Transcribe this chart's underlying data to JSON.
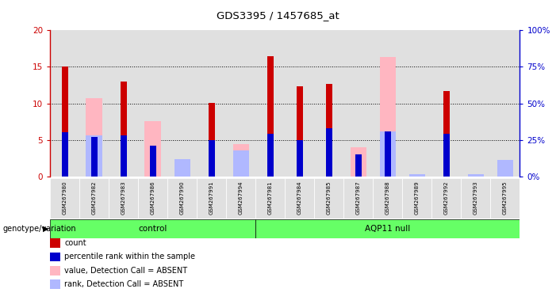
{
  "title": "GDS3395 / 1457685_at",
  "samples": [
    "GSM267980",
    "GSM267982",
    "GSM267983",
    "GSM267986",
    "GSM267990",
    "GSM267991",
    "GSM267994",
    "GSM267981",
    "GSM267984",
    "GSM267985",
    "GSM267987",
    "GSM267988",
    "GSM267989",
    "GSM267992",
    "GSM267993",
    "GSM267995"
  ],
  "count": [
    15.1,
    0,
    13.0,
    0,
    0,
    10.1,
    0,
    16.5,
    12.3,
    12.7,
    0,
    0,
    0,
    11.7,
    0,
    0
  ],
  "percentile": [
    30,
    27,
    28,
    21,
    0,
    25,
    0,
    29,
    25,
    33,
    15,
    31,
    0,
    29,
    0,
    0
  ],
  "absent_value": [
    0,
    10.7,
    0,
    7.6,
    2.3,
    0,
    4.4,
    0,
    0,
    0,
    4.0,
    16.4,
    0,
    0,
    0,
    1.9
  ],
  "absent_rank": [
    0,
    28,
    0,
    0,
    12,
    0,
    18,
    0,
    0,
    0,
    0,
    31,
    1.5,
    0,
    1.5,
    11
  ],
  "group_control_count": 7,
  "group_aqp11_count": 9,
  "group_control_label": "control",
  "group_aqp11_label": "AQP11 null",
  "ylim_left": [
    0,
    20
  ],
  "ylim_right": [
    0,
    100
  ],
  "yticks_left": [
    0,
    5,
    10,
    15,
    20
  ],
  "yticks_right": [
    0,
    25,
    50,
    75,
    100
  ],
  "color_count": "#cc0000",
  "color_percentile": "#0000cc",
  "color_absent_value": "#ffb6c1",
  "color_absent_rank": "#b0b8ff",
  "color_bg_col": "#e0e0e0",
  "color_group_bg": "#66ff66",
  "legend_labels": [
    "count",
    "percentile rank within the sample",
    "value, Detection Call = ABSENT",
    "rank, Detection Call = ABSENT"
  ],
  "genotype_label": "genotype/variation"
}
